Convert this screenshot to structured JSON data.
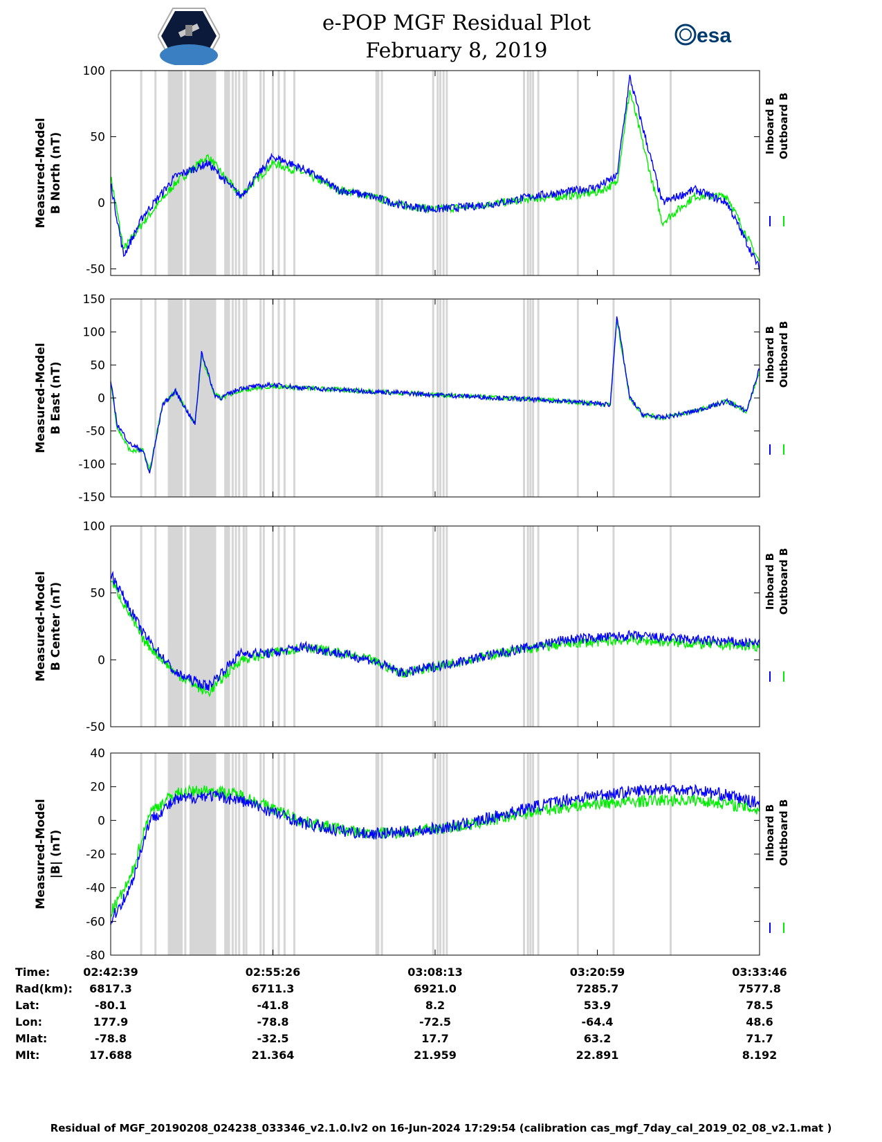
{
  "header": {
    "title": "e-POP MGF Residual Plot",
    "date": "February 8, 2019",
    "left_logo": "satellite-mission-patch-icon",
    "right_logo": "esa-logo-icon",
    "right_logo_text": "esa"
  },
  "colors": {
    "inboard": "#0000ff",
    "outboard": "#00ee00",
    "gap_shading": "#d6d6d6"
  },
  "legend": [
    "Inboard B",
    "Outboard B"
  ],
  "chart_data": [
    {
      "type": "line",
      "title": "",
      "ylabel": [
        "Measured-Model",
        "B North (nT)"
      ],
      "ylim": [
        -55,
        100
      ],
      "yticks": [
        100,
        50,
        0,
        -50
      ],
      "xticks": [
        "02:42:39",
        "02:55:26",
        "03:08:13",
        "03:20:59",
        "03:33:46"
      ],
      "series": [
        {
          "name": "Inboard B",
          "x": [
            0,
            0.02,
            0.05,
            0.1,
            0.15,
            0.2,
            0.25,
            0.3,
            0.35,
            0.4,
            0.45,
            0.5,
            0.55,
            0.6,
            0.65,
            0.7,
            0.75,
            0.78,
            0.8,
            0.85,
            0.9,
            0.95,
            1.0
          ],
          "values": [
            15,
            -40,
            -10,
            20,
            30,
            5,
            35,
            25,
            10,
            5,
            -2,
            -5,
            -3,
            0,
            5,
            8,
            12,
            20,
            95,
            0,
            10,
            0,
            -50
          ]
        },
        {
          "name": "Outboard B",
          "x": [
            0,
            0.02,
            0.05,
            0.1,
            0.15,
            0.2,
            0.25,
            0.3,
            0.35,
            0.4,
            0.45,
            0.5,
            0.55,
            0.6,
            0.65,
            0.7,
            0.75,
            0.78,
            0.8,
            0.85,
            0.9,
            0.95,
            1.0
          ],
          "values": [
            20,
            -35,
            -15,
            15,
            35,
            5,
            30,
            22,
            10,
            5,
            -2,
            -5,
            -3,
            0,
            3,
            5,
            8,
            15,
            85,
            -15,
            5,
            5,
            -45
          ]
        }
      ]
    },
    {
      "type": "line",
      "title": "",
      "ylabel": [
        "Measured-Model",
        "B East (nT)"
      ],
      "ylim": [
        -150,
        150
      ],
      "yticks": [
        150,
        100,
        50,
        0,
        -50,
        -100,
        -150
      ],
      "xticks": [
        "02:42:39",
        "02:55:26",
        "03:08:13",
        "03:20:59",
        "03:33:46"
      ],
      "series": [
        {
          "name": "Inboard B",
          "x": [
            0,
            0.01,
            0.03,
            0.05,
            0.06,
            0.08,
            0.1,
            0.13,
            0.14,
            0.16,
            0.17,
            0.2,
            0.25,
            0.3,
            0.4,
            0.5,
            0.6,
            0.7,
            0.77,
            0.78,
            0.8,
            0.82,
            0.85,
            0.9,
            0.95,
            0.98,
            1.0
          ],
          "values": [
            25,
            -40,
            -70,
            -80,
            -115,
            -10,
            10,
            -40,
            70,
            5,
            0,
            15,
            20,
            15,
            10,
            5,
            0,
            -5,
            -10,
            125,
            0,
            -25,
            -30,
            -20,
            -5,
            -20,
            45
          ]
        },
        {
          "name": "Outboard B",
          "x": [
            0,
            0.01,
            0.03,
            0.05,
            0.06,
            0.08,
            0.1,
            0.13,
            0.14,
            0.16,
            0.17,
            0.2,
            0.25,
            0.3,
            0.4,
            0.5,
            0.6,
            0.7,
            0.77,
            0.78,
            0.8,
            0.82,
            0.85,
            0.9,
            0.95,
            0.98,
            1.0
          ],
          "values": [
            25,
            -45,
            -80,
            -80,
            -110,
            -10,
            10,
            -40,
            65,
            5,
            0,
            12,
            18,
            15,
            10,
            5,
            0,
            -5,
            -10,
            120,
            0,
            -25,
            -30,
            -20,
            -5,
            -20,
            40
          ]
        }
      ]
    },
    {
      "type": "line",
      "title": "",
      "ylabel": [
        "Measured-Model",
        "B Center (nT)"
      ],
      "ylim": [
        -50,
        100
      ],
      "yticks": [
        100,
        50,
        0,
        -50
      ],
      "xticks": [
        "02:42:39",
        "02:55:26",
        "03:08:13",
        "03:20:59",
        "03:33:46"
      ],
      "series": [
        {
          "name": "Inboard B",
          "x": [
            0,
            0.05,
            0.1,
            0.15,
            0.2,
            0.25,
            0.3,
            0.4,
            0.45,
            0.5,
            0.6,
            0.7,
            0.8,
            0.9,
            1.0
          ],
          "values": [
            65,
            20,
            -10,
            -20,
            5,
            5,
            10,
            0,
            -10,
            -5,
            5,
            15,
            18,
            15,
            12
          ]
        },
        {
          "name": "Outboard B",
          "x": [
            0,
            0.05,
            0.1,
            0.15,
            0.2,
            0.25,
            0.3,
            0.4,
            0.45,
            0.5,
            0.6,
            0.7,
            0.8,
            0.9,
            1.0
          ],
          "values": [
            60,
            15,
            -10,
            -25,
            0,
            5,
            10,
            0,
            -10,
            -5,
            5,
            12,
            15,
            12,
            10
          ]
        }
      ]
    },
    {
      "type": "line",
      "title": "",
      "ylabel": [
        "Measured-Model",
        "|B| (nT)"
      ],
      "ylim": [
        -80,
        40
      ],
      "yticks": [
        40,
        20,
        0,
        -20,
        -40,
        -60,
        -80
      ],
      "xticks": [
        "02:42:39",
        "02:55:26",
        "03:08:13",
        "03:20:59",
        "03:33:46"
      ],
      "series": [
        {
          "name": "Inboard B",
          "x": [
            0,
            0.03,
            0.06,
            0.1,
            0.15,
            0.2,
            0.25,
            0.3,
            0.35,
            0.4,
            0.45,
            0.5,
            0.55,
            0.6,
            0.65,
            0.7,
            0.75,
            0.8,
            0.85,
            0.9,
            0.95,
            1.0
          ],
          "values": [
            -60,
            -40,
            0,
            12,
            15,
            12,
            5,
            -2,
            -6,
            -8,
            -7,
            -5,
            -2,
            3,
            8,
            12,
            15,
            17,
            19,
            18,
            15,
            10
          ]
        },
        {
          "name": "Outboard B",
          "x": [
            0,
            0.03,
            0.06,
            0.1,
            0.15,
            0.2,
            0.25,
            0.3,
            0.35,
            0.4,
            0.45,
            0.5,
            0.55,
            0.6,
            0.65,
            0.7,
            0.75,
            0.8,
            0.85,
            0.9,
            0.95,
            1.0
          ],
          "values": [
            -55,
            -35,
            5,
            16,
            18,
            15,
            7,
            -1,
            -5,
            -8,
            -7,
            -5,
            -3,
            1,
            5,
            8,
            10,
            11,
            12,
            12,
            10,
            6
          ]
        }
      ]
    }
  ],
  "ephemeris": {
    "labels": [
      "Time:",
      "Rad(km):",
      "Lat:",
      "Lon:",
      "Mlat:",
      "Mlt:"
    ],
    "columns": [
      [
        "02:42:39",
        "6817.3",
        "-80.1",
        "177.9",
        "-78.8",
        "17.688"
      ],
      [
        "02:55:26",
        "6711.3",
        "-41.8",
        "-78.8",
        "-32.5",
        "21.364"
      ],
      [
        "03:08:13",
        "6921.0",
        "8.2",
        "-72.5",
        "17.7",
        "21.959"
      ],
      [
        "03:20:59",
        "7285.7",
        "53.9",
        "-64.4",
        "63.2",
        "22.891"
      ],
      [
        "03:33:46",
        "7577.8",
        "78.5",
        "48.6",
        "71.7",
        "8.192"
      ]
    ]
  },
  "footer": "Residual of MGF_20190208_024238_033346_v2.1.0.lv2 on 16-Jun-2024 17:29:54 (calibration cas_mgf_7day_cal_2019_02_08_v2.1.mat )"
}
